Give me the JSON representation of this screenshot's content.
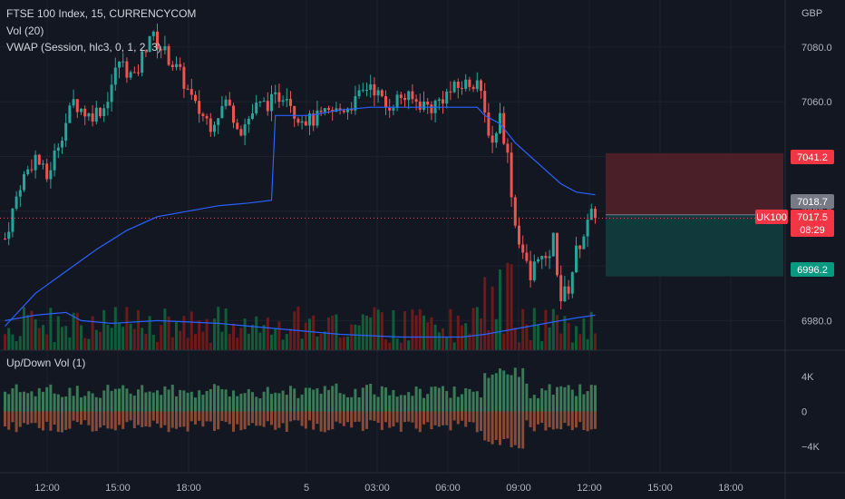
{
  "legend": {
    "main": "FTSE 100 Index, 15, CURRENCYCOM",
    "vol": "Vol (20)",
    "vwap": "VWAP (Session, hlc3, 0, 1, 2, 3)",
    "updown": "Up/Down Vol (1)"
  },
  "currency": "GBP",
  "colors": {
    "background": "#131722",
    "up": "#26a69a",
    "down": "#ef5350",
    "vwap": "#2962ff",
    "volume_up": "#0f5e39",
    "volume_down": "#6e1a1a",
    "updown_up": "#3a7a56",
    "updown_down": "#8a4a36",
    "stop_zone": "#4a1f27",
    "target_zone": "#11383a"
  },
  "price_labels": {
    "stop": "7041.2",
    "current": "7018.7",
    "symbol": "UK100",
    "last": "7017.5",
    "countdown": "08:29",
    "target": "6996.2"
  },
  "chart_data": [
    {
      "type": "candlestick",
      "y_ticks": [
        7080,
        7060,
        7040,
        7020,
        7000,
        6980
      ],
      "y_tick_labels": [
        "7080.0",
        "7060.0",
        "7040.0",
        "7020.0",
        "7000.0",
        "6980.0"
      ],
      "ylim": [
        6969.2,
        7097.2
      ],
      "x_ticks": [
        "12:00",
        "15:00",
        "18:00",
        "5",
        "03:00",
        "06:00",
        "09:00",
        "12:00",
        "15:00",
        "18:00"
      ],
      "reference_price": 7017.5,
      "risk_reward": {
        "entry": 7018.7,
        "stop": 7041.2,
        "target": 6996.2
      },
      "anchors": [
        {
          "i": 0,
          "p": 7010
        },
        {
          "i": 4,
          "p": 7030
        },
        {
          "i": 8,
          "p": 7040
        },
        {
          "i": 11,
          "p": 7032
        },
        {
          "i": 14,
          "p": 7045
        },
        {
          "i": 18,
          "p": 7060
        },
        {
          "i": 22,
          "p": 7055
        },
        {
          "i": 26,
          "p": 7058
        },
        {
          "i": 30,
          "p": 7075
        },
        {
          "i": 34,
          "p": 7068
        },
        {
          "i": 38,
          "p": 7085
        },
        {
          "i": 42,
          "p": 7078
        },
        {
          "i": 46,
          "p": 7070
        },
        {
          "i": 50,
          "p": 7058
        },
        {
          "i": 54,
          "p": 7052
        },
        {
          "i": 58,
          "p": 7060
        },
        {
          "i": 62,
          "p": 7050
        },
        {
          "i": 66,
          "p": 7058
        },
        {
          "i": 70,
          "p": 7060
        },
        {
          "i": 74,
          "p": 7064
        },
        {
          "i": 76,
          "p": 7056
        },
        {
          "i": 80,
          "p": 7053
        },
        {
          "i": 84,
          "p": 7055
        },
        {
          "i": 88,
          "p": 7057
        },
        {
          "i": 92,
          "p": 7060
        },
        {
          "i": 96,
          "p": 7067
        },
        {
          "i": 100,
          "p": 7058
        },
        {
          "i": 104,
          "p": 7062
        },
        {
          "i": 108,
          "p": 7060
        },
        {
          "i": 112,
          "p": 7058
        },
        {
          "i": 116,
          "p": 7063
        },
        {
          "i": 120,
          "p": 7066
        },
        {
          "i": 124,
          "p": 7068
        },
        {
          "i": 126,
          "p": 7055
        },
        {
          "i": 128,
          "p": 7045
        },
        {
          "i": 130,
          "p": 7055
        },
        {
          "i": 132,
          "p": 7040
        },
        {
          "i": 134,
          "p": 7015
        },
        {
          "i": 136,
          "p": 7005
        },
        {
          "i": 138,
          "p": 6995
        },
        {
          "i": 140,
          "p": 7005
        },
        {
          "i": 142,
          "p": 7000
        },
        {
          "i": 144,
          "p": 7010
        },
        {
          "i": 146,
          "p": 6988
        },
        {
          "i": 148,
          "p": 6992
        },
        {
          "i": 150,
          "p": 7005
        },
        {
          "i": 152,
          "p": 7012
        },
        {
          "i": 154,
          "p": 7018
        },
        {
          "i": 155,
          "p": 7017.5
        }
      ],
      "vwap": [
        {
          "i": 0,
          "p": 6978
        },
        {
          "i": 8,
          "p": 6990
        },
        {
          "i": 16,
          "p": 6998
        },
        {
          "i": 24,
          "p": 7006
        },
        {
          "i": 32,
          "p": 7013
        },
        {
          "i": 40,
          "p": 7018
        },
        {
          "i": 48,
          "p": 7020
        },
        {
          "i": 56,
          "p": 7022
        },
        {
          "i": 64,
          "p": 7023
        },
        {
          "i": 70,
          "p": 7024
        },
        {
          "i": 71,
          "p": 7055
        },
        {
          "i": 80,
          "p": 7055
        },
        {
          "i": 88,
          "p": 7057
        },
        {
          "i": 96,
          "p": 7058
        },
        {
          "i": 104,
          "p": 7058
        },
        {
          "i": 112,
          "p": 7058
        },
        {
          "i": 120,
          "p": 7058
        },
        {
          "i": 124,
          "p": 7058
        },
        {
          "i": 126,
          "p": 7055
        },
        {
          "i": 130,
          "p": 7052
        },
        {
          "i": 134,
          "p": 7045
        },
        {
          "i": 138,
          "p": 7040
        },
        {
          "i": 142,
          "p": 7035
        },
        {
          "i": 146,
          "p": 7030
        },
        {
          "i": 150,
          "p": 7027
        },
        {
          "i": 155,
          "p": 7026
        }
      ],
      "volume_ma": [
        {
          "i": 0,
          "p": 6980
        },
        {
          "i": 8,
          "p": 6982
        },
        {
          "i": 16,
          "p": 6983
        },
        {
          "i": 20,
          "p": 6980
        },
        {
          "i": 28,
          "p": 6979
        },
        {
          "i": 40,
          "p": 6980
        },
        {
          "i": 56,
          "p": 6979
        },
        {
          "i": 72,
          "p": 6977
        },
        {
          "i": 88,
          "p": 6975
        },
        {
          "i": 104,
          "p": 6974
        },
        {
          "i": 120,
          "p": 6974
        },
        {
          "i": 126,
          "p": 6975
        },
        {
          "i": 134,
          "p": 6977
        },
        {
          "i": 142,
          "p": 6979
        },
        {
          "i": 150,
          "p": 6981
        },
        {
          "i": 155,
          "p": 6982
        }
      ],
      "volume_spikes": [
        126,
        128,
        130,
        132,
        133
      ]
    },
    {
      "type": "bar",
      "name": "Up/Down Vol",
      "y_ticks": [
        4000,
        0,
        -4000
      ],
      "y_tick_labels": [
        "4K",
        "0",
        "−4K"
      ],
      "ylim": [
        -7000,
        7000
      ]
    }
  ]
}
